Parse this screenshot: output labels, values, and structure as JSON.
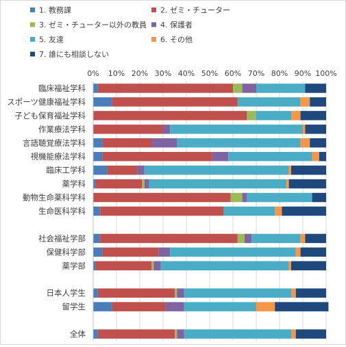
{
  "chart_data": {
    "type": "bar",
    "orientation": "horizontal",
    "stacked": "percent",
    "xlim": [
      0,
      100
    ],
    "x_ticks": [
      "0%",
      "10%",
      "20%",
      "30%",
      "40%",
      "50%",
      "60%",
      "70%",
      "80%",
      "90%",
      "100%"
    ],
    "grid": "vertical",
    "legend_position": "top",
    "categories": [
      "臨床福祉学科",
      "スポーツ健康福祉学科",
      "子ども保育福祉学科",
      "作業療法学科",
      "言語聴覚療法学科",
      "視機能療法学科",
      "臨床工学科",
      "薬学科",
      "動物生命薬科学科",
      "生命医科学科",
      "",
      "社会福祉学部",
      "保健科学部",
      "薬学部",
      "",
      "日本人学生",
      "留学生",
      "",
      "全体"
    ],
    "series": [
      {
        "name": "1. 教務課",
        "color": "#4a7ebb",
        "values": [
          2,
          8,
          0,
          0,
          4,
          4,
          6,
          1,
          0,
          3,
          null,
          3,
          4,
          1,
          null,
          2,
          8,
          null,
          2
        ]
      },
      {
        "name": "2. ゼミ・チューター",
        "color": "#c0504d",
        "values": [
          58,
          54,
          66,
          30,
          21,
          47,
          13,
          20,
          59,
          53,
          null,
          59,
          24,
          24,
          null,
          33,
          23,
          null,
          33
        ]
      },
      {
        "name": "3. ゼミ・チューター以外の教員",
        "color": "#9bbb59",
        "values": [
          4,
          0,
          4,
          0,
          0,
          0,
          0,
          1,
          5,
          0,
          null,
          3,
          0,
          1,
          null,
          1,
          0,
          null,
          1
        ]
      },
      {
        "name": "4. 保護者",
        "color": "#8064a2",
        "values": [
          6,
          0,
          0,
          3,
          11,
          7,
          3,
          2,
          2,
          0,
          null,
          3,
          5,
          3,
          null,
          3,
          8,
          null,
          3
        ]
      },
      {
        "name": "5. 友達",
        "color": "#4bacc6",
        "values": [
          21,
          27,
          15,
          57,
          53,
          36,
          62,
          59,
          28,
          22,
          null,
          21,
          54,
          55,
          null,
          46,
          31,
          null,
          46
        ]
      },
      {
        "name": "6. その他",
        "color": "#f79646",
        "values": [
          0,
          4,
          4,
          1,
          4,
          3,
          1,
          1,
          0,
          3,
          null,
          2,
          2,
          1,
          null,
          2,
          8,
          null,
          2
        ]
      },
      {
        "name": "7. 誰にも相談しない",
        "color": "#1f497d",
        "values": [
          9,
          7,
          11,
          9,
          7,
          3,
          15,
          16,
          6,
          19,
          null,
          9,
          11,
          15,
          null,
          13,
          23,
          null,
          13
        ]
      }
    ]
  }
}
